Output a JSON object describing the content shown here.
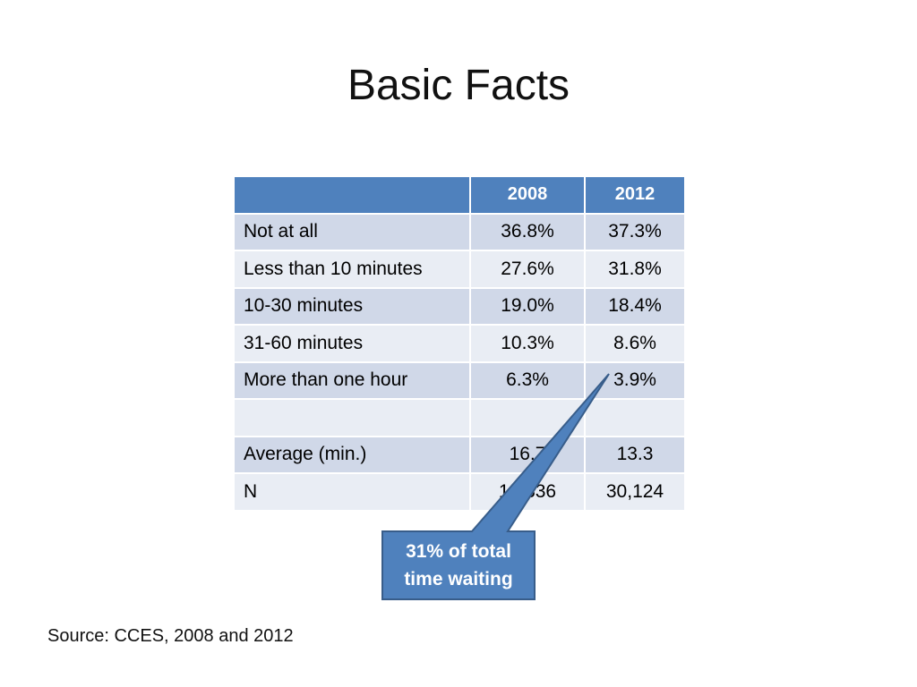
{
  "slide": {
    "title": "Basic Facts",
    "source": "Source:  CCES, 2008 and 2012"
  },
  "table": {
    "header": [
      "",
      "2008",
      "2012"
    ],
    "rows": [
      {
        "label": "Not at all",
        "v2008": "36.8%",
        "v2012": "37.3%"
      },
      {
        "label": "Less than 10 minutes",
        "v2008": "27.6%",
        "v2012": "31.8%"
      },
      {
        "label": "10-30 minutes",
        "v2008": "19.0%",
        "v2012": "18.4%"
      },
      {
        "label": "31-60 minutes",
        "v2008": "10.3%",
        "v2012": "8.6%"
      },
      {
        "label": "More than one hour",
        "v2008": "6.3%",
        "v2012": "3.9%"
      },
      {
        "label": "",
        "v2008": "",
        "v2012": ""
      },
      {
        "label": "Average (min.)",
        "v2008": "16.7",
        "v2012": "13.3"
      },
      {
        "label": "N",
        "v2008": "10,336",
        "v2012": "30,124"
      }
    ]
  },
  "callout": {
    "line1": "31% of total",
    "line2": "time waiting"
  },
  "colors": {
    "header_fill": "#4f81bd",
    "row_odd": "#d0d8e8",
    "row_even": "#e9edf4",
    "callout_fill": "#4f81bd",
    "callout_border": "#385d8a"
  }
}
